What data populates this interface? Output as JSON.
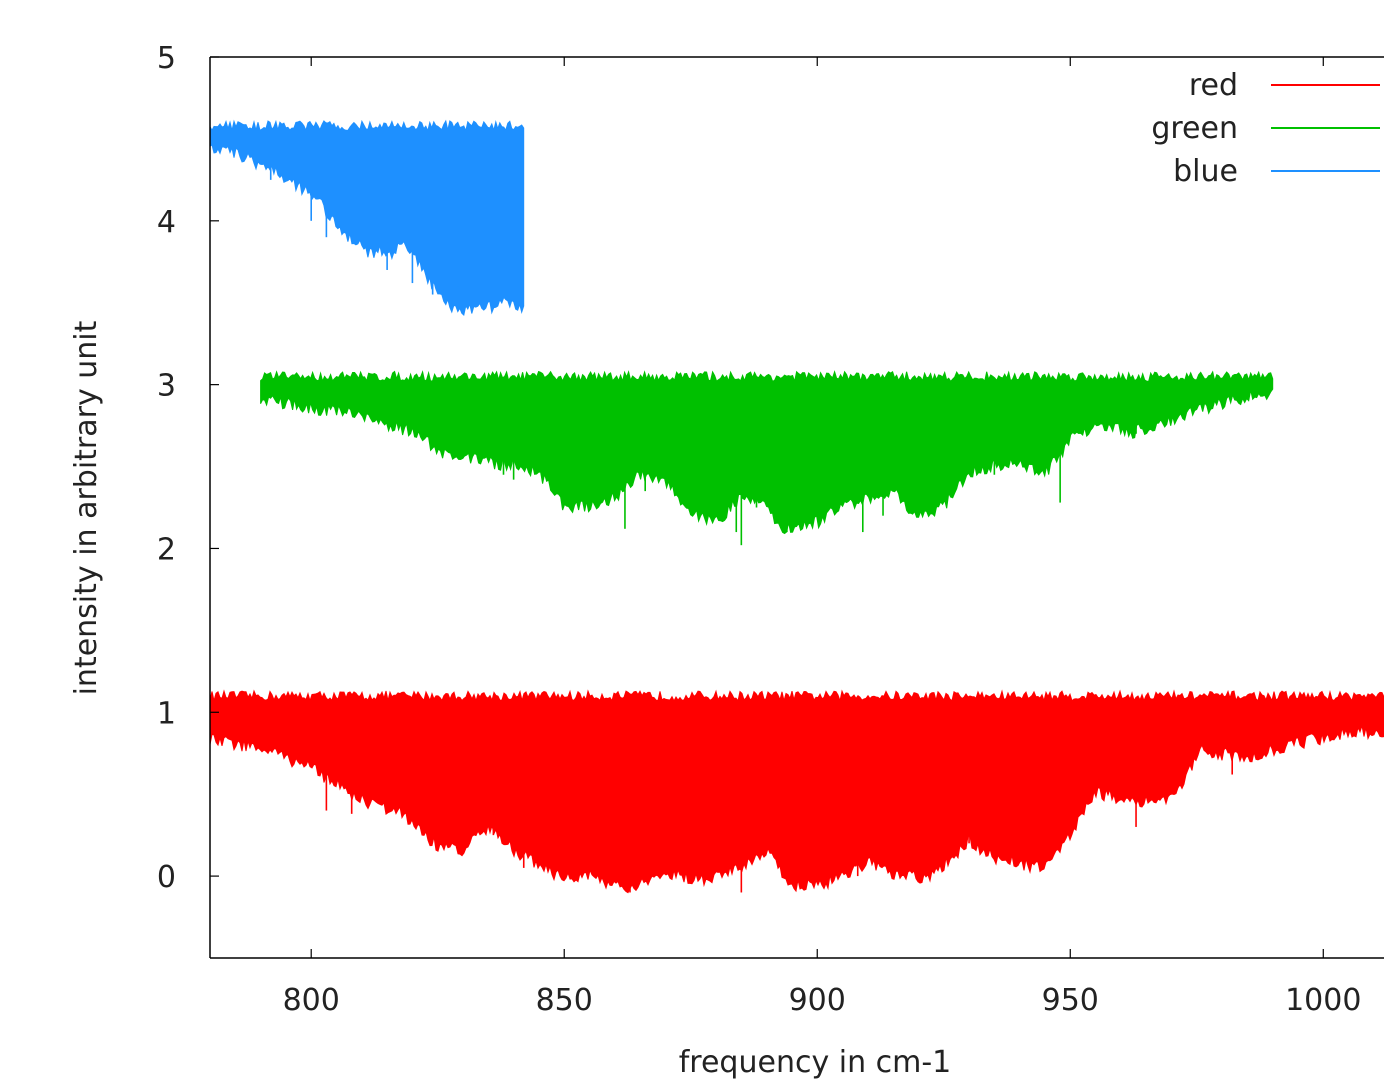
{
  "chart_data": {
    "type": "area",
    "xlabel": "frequency in cm-1",
    "ylabel": "intensity in arbitrary unit",
    "xlim": [
      780,
      1012
    ],
    "ylim": [
      -0.5,
      5
    ],
    "x_ticks": [
      "800",
      "850",
      "900",
      "950",
      "1000"
    ],
    "y_ticks": [
      "0",
      "1",
      "2",
      "3",
      "4",
      "5"
    ],
    "grid": false,
    "legend_position": "top-right",
    "series": [
      {
        "name": "red",
        "color": "#ff0000",
        "x_range": [
          780,
          1012
        ],
        "upper": [
          [
            780,
            1.1
          ],
          [
            1012,
            1.1
          ]
        ],
        "lower": [
          [
            780,
            0.87
          ],
          [
            790,
            0.82
          ],
          [
            800,
            0.7
          ],
          [
            810,
            0.5
          ],
          [
            818,
            0.42
          ],
          [
            825,
            0.22
          ],
          [
            830,
            0.2
          ],
          [
            835,
            0.33
          ],
          [
            840,
            0.2
          ],
          [
            850,
            0.02
          ],
          [
            855,
            0.05
          ],
          [
            862,
            -0.05
          ],
          [
            870,
            0.05
          ],
          [
            878,
            0.02
          ],
          [
            885,
            0.1
          ],
          [
            890,
            0.2
          ],
          [
            895,
            -0.02
          ],
          [
            902,
            0.0
          ],
          [
            910,
            0.12
          ],
          [
            915,
            0.05
          ],
          [
            922,
            0.02
          ],
          [
            930,
            0.25
          ],
          [
            935,
            0.15
          ],
          [
            940,
            0.12
          ],
          [
            945,
            0.08
          ],
          [
            950,
            0.3
          ],
          [
            955,
            0.55
          ],
          [
            962,
            0.5
          ],
          [
            970,
            0.5
          ],
          [
            976,
            0.8
          ],
          [
            985,
            0.77
          ],
          [
            995,
            0.85
          ],
          [
            1005,
            0.92
          ],
          [
            1012,
            0.92
          ]
        ],
        "drops": [
          [
            803,
            0.4
          ],
          [
            808,
            0.38
          ],
          [
            823,
            0.3
          ],
          [
            836,
            0.25
          ],
          [
            842,
            0.05
          ],
          [
            850,
            0.3
          ],
          [
            853,
            0.1
          ],
          [
            860,
            0.25
          ],
          [
            863,
            -0.1
          ],
          [
            868,
            0.15
          ],
          [
            877,
            0.08
          ],
          [
            882,
            0.2
          ],
          [
            885,
            -0.1
          ],
          [
            890,
            0.35
          ],
          [
            895,
            0.05
          ],
          [
            903,
            0.1
          ],
          [
            908,
            0.0
          ],
          [
            912,
            0.35
          ],
          [
            923,
            0.4
          ],
          [
            930,
            0.2
          ],
          [
            947,
            0.3
          ],
          [
            958,
            0.6
          ],
          [
            963,
            0.3
          ],
          [
            968,
            0.7
          ],
          [
            982,
            0.62
          ],
          [
            992,
            0.8
          ]
        ]
      },
      {
        "name": "green",
        "color": "#00c000",
        "x_range": [
          790,
          990
        ],
        "upper": [
          [
            790,
            3.05
          ],
          [
            990,
            3.05
          ]
        ],
        "lower": [
          [
            790,
            2.95
          ],
          [
            800,
            2.9
          ],
          [
            810,
            2.85
          ],
          [
            820,
            2.75
          ],
          [
            826,
            2.62
          ],
          [
            830,
            2.6
          ],
          [
            838,
            2.55
          ],
          [
            845,
            2.5
          ],
          [
            850,
            2.3
          ],
          [
            855,
            2.3
          ],
          [
            860,
            2.35
          ],
          [
            865,
            2.5
          ],
          [
            870,
            2.45
          ],
          [
            875,
            2.25
          ],
          [
            880,
            2.2
          ],
          [
            885,
            2.35
          ],
          [
            890,
            2.3
          ],
          [
            893,
            2.15
          ],
          [
            900,
            2.2
          ],
          [
            905,
            2.3
          ],
          [
            910,
            2.35
          ],
          [
            915,
            2.4
          ],
          [
            920,
            2.22
          ],
          [
            925,
            2.3
          ],
          [
            930,
            2.5
          ],
          [
            935,
            2.55
          ],
          [
            940,
            2.55
          ],
          [
            945,
            2.5
          ],
          [
            950,
            2.7
          ],
          [
            955,
            2.8
          ],
          [
            962,
            2.75
          ],
          [
            968,
            2.8
          ],
          [
            975,
            2.88
          ],
          [
            985,
            2.97
          ],
          [
            990,
            2.98
          ]
        ],
        "drops": [
          [
            830,
            2.55
          ],
          [
            838,
            2.45
          ],
          [
            840,
            2.42
          ],
          [
            848,
            2.35
          ],
          [
            856,
            2.3
          ],
          [
            862,
            2.12
          ],
          [
            866,
            2.35
          ],
          [
            874,
            2.25
          ],
          [
            880,
            2.3
          ],
          [
            884,
            2.1
          ],
          [
            885,
            2.02
          ],
          [
            888,
            2.25
          ],
          [
            894,
            2.1
          ],
          [
            899,
            2.2
          ],
          [
            903,
            2.3
          ],
          [
            909,
            2.1
          ],
          [
            913,
            2.2
          ],
          [
            920,
            2.3
          ],
          [
            926,
            2.35
          ],
          [
            935,
            2.45
          ],
          [
            948,
            2.28
          ],
          [
            963,
            2.7
          ]
        ]
      },
      {
        "name": "blue",
        "color": "#1e90ff",
        "x_range": [
          780,
          842
        ],
        "upper": [
          [
            780,
            4.58
          ],
          [
            842,
            4.58
          ]
        ],
        "lower": [
          [
            780,
            4.5
          ],
          [
            785,
            4.45
          ],
          [
            790,
            4.38
          ],
          [
            795,
            4.3
          ],
          [
            800,
            4.2
          ],
          [
            803,
            4.1
          ],
          [
            807,
            3.95
          ],
          [
            811,
            3.85
          ],
          [
            816,
            3.85
          ],
          [
            818,
            3.9
          ],
          [
            820,
            3.85
          ],
          [
            822,
            3.75
          ],
          [
            825,
            3.6
          ],
          [
            828,
            3.5
          ],
          [
            832,
            3.5
          ],
          [
            836,
            3.52
          ],
          [
            840,
            3.55
          ],
          [
            842,
            3.5
          ]
        ],
        "drops": [
          [
            792,
            4.25
          ],
          [
            800,
            4.0
          ],
          [
            803,
            3.9
          ],
          [
            806,
            3.95
          ],
          [
            815,
            3.7
          ],
          [
            820,
            3.62
          ],
          [
            824,
            3.55
          ],
          [
            826,
            3.58
          ],
          [
            829,
            3.6
          ],
          [
            830,
            3.55
          ]
        ]
      }
    ]
  }
}
